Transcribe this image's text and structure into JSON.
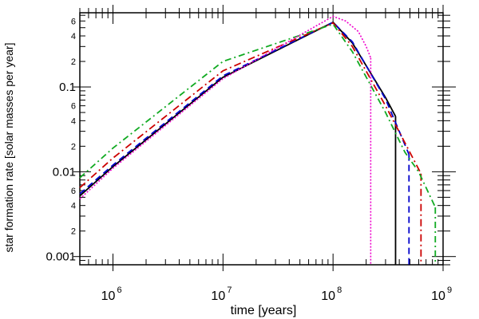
{
  "chart_data": {
    "type": "line",
    "title": "",
    "xlabel": "time [years]",
    "ylabel": "star formation rate [solar masses per year]",
    "x_scale": "log",
    "y_scale": "log",
    "xlim": [
      500000,
      1000000000
    ],
    "ylim": [
      0.0008,
      0.75
    ],
    "x_tick_labels": [
      {
        "value": 1000000,
        "base": "10",
        "exp": "6"
      },
      {
        "value": 10000000,
        "base": "10",
        "exp": "7"
      },
      {
        "value": 100000000,
        "base": "10",
        "exp": "8"
      },
      {
        "value": 1000000000,
        "base": "10",
        "exp": "9"
      }
    ],
    "y_major_labels": [
      {
        "value": 0.001,
        "label": "0.001"
      },
      {
        "value": 0.01,
        "label": "0.01"
      },
      {
        "value": 0.1,
        "label": "0.1"
      }
    ],
    "y_minor_labels": [
      {
        "value": 0.002,
        "label": "2"
      },
      {
        "value": 0.004,
        "label": "4"
      },
      {
        "value": 0.006,
        "label": "6"
      },
      {
        "value": 0.02,
        "label": "2"
      },
      {
        "value": 0.04,
        "label": "4"
      },
      {
        "value": 0.06,
        "label": "6"
      },
      {
        "value": 0.2,
        "label": "2"
      },
      {
        "value": 0.4,
        "label": "4"
      },
      {
        "value": 0.6,
        "label": "6"
      }
    ],
    "series": [
      {
        "name": "solid-black",
        "color": "#000000",
        "dash": "",
        "width": 1.8,
        "points": [
          [
            500000,
            0.0052
          ],
          [
            1000000,
            0.0115
          ],
          [
            10000000,
            0.13
          ],
          [
            100000000,
            0.58
          ],
          [
            150000000,
            0.33
          ],
          [
            300000000,
            0.075
          ],
          [
            370000000,
            0.045
          ]
        ],
        "drop": {
          "x": 370000000,
          "y": 0.045
        }
      },
      {
        "name": "dashed-blue",
        "color": "#0000cc",
        "dash": "8,5",
        "width": 1.8,
        "points": [
          [
            500000,
            0.0055
          ],
          [
            1000000,
            0.012
          ],
          [
            10000000,
            0.135
          ],
          [
            100000000,
            0.58
          ],
          [
            150000000,
            0.34
          ],
          [
            300000000,
            0.072
          ],
          [
            400000000,
            0.03
          ],
          [
            490000000,
            0.016
          ]
        ],
        "drop": {
          "x": 490000000,
          "y": 0.016
        }
      },
      {
        "name": "dash-dot-red",
        "color": "#cc0000",
        "dash": "9,4,2,4",
        "width": 1.8,
        "points": [
          [
            500000,
            0.0065
          ],
          [
            1000000,
            0.0145
          ],
          [
            10000000,
            0.155
          ],
          [
            100000000,
            0.57
          ],
          [
            150000000,
            0.3
          ],
          [
            300000000,
            0.06
          ],
          [
            450000000,
            0.022
          ],
          [
            630000000,
            0.0095
          ]
        ],
        "drop": {
          "x": 630000000,
          "y": 0.0095
        }
      },
      {
        "name": "dash-dot-green",
        "color": "#11aa22",
        "dash": "8,4,2,4",
        "width": 1.8,
        "points": [
          [
            500000,
            0.0085
          ],
          [
            1000000,
            0.019
          ],
          [
            10000000,
            0.2
          ],
          [
            100000000,
            0.55
          ],
          [
            150000000,
            0.26
          ],
          [
            300000000,
            0.05
          ],
          [
            450000000,
            0.017
          ],
          [
            600000000,
            0.01
          ],
          [
            850000000,
            0.0038
          ]
        ],
        "drop": {
          "x": 850000000,
          "y": 0.0038
        }
      },
      {
        "name": "dotted-magenta",
        "color": "#ee00cc",
        "dash": "2,2",
        "width": 1.6,
        "points": [
          [
            500000,
            0.0048
          ],
          [
            1000000,
            0.011
          ],
          [
            10000000,
            0.125
          ],
          [
            100000000,
            0.68
          ],
          [
            130000000,
            0.6
          ],
          [
            170000000,
            0.45
          ],
          [
            200000000,
            0.3
          ],
          [
            220000000,
            0.22
          ]
        ],
        "drop": {
          "x": 220000000,
          "y": 0.22
        }
      }
    ]
  }
}
